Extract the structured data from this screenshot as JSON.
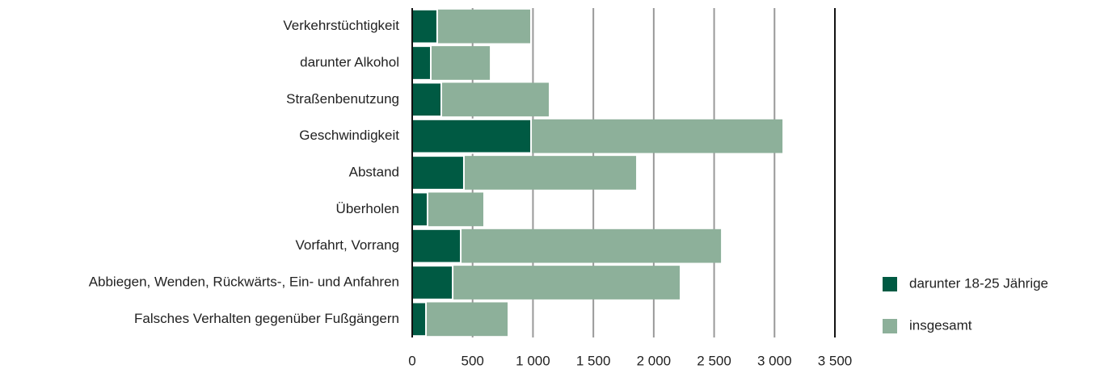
{
  "chart_data": {
    "type": "bar",
    "orientation": "horizontal",
    "categories": [
      "Verkehrstüchtigkeit",
      "darunter Alkohol",
      "Straßenbenutzung",
      "Geschwindigkeit",
      "Abstand",
      "Überholen",
      "Vorfahrt, Vorrang",
      "Abbiegen, Wenden, Rückwärts-, Ein- und Anfahren",
      "Falsches Verhalten gegenüber Fußgängern"
    ],
    "series": [
      {
        "name": "insgesamt",
        "color": "#8db09a",
        "values": [
          977,
          643,
          1131,
          3066,
          1854,
          589,
          2557,
          2215,
          790
        ]
      },
      {
        "name": "darunter 18-25 Jährige",
        "color": "#005a43",
        "values": [
          207,
          154,
          241,
          984,
          428,
          127,
          402,
          335,
          114
        ]
      }
    ],
    "xlim": [
      0,
      3500
    ],
    "xticks": [
      0,
      500,
      {
        "value": 1000,
        "label": "1 000"
      },
      {
        "value": 1500,
        "label": "1 500"
      },
      {
        "value": 2000,
        "label": "2 000"
      },
      {
        "value": 2500,
        "label": "2 500"
      },
      {
        "value": 3000,
        "label": "3 000"
      },
      {
        "value": 3500,
        "label": "3 500"
      }
    ],
    "grid": true,
    "legend": "right"
  }
}
